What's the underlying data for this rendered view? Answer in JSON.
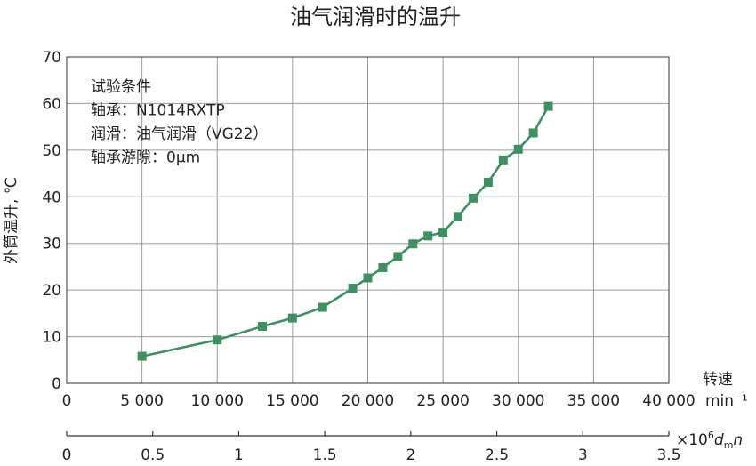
{
  "chart_data": {
    "type": "line",
    "title": "油气润滑时的温升",
    "ylabel": "外筒温升, ℃",
    "xlabel": "转速",
    "xunit": "min⁻¹",
    "x2label_prefix": "×10",
    "x2label_exp": "6",
    "x2label_var_d": "d",
    "x2label_var_sub": "m",
    "x2label_var_n": "n",
    "xlim": [
      0,
      40000
    ],
    "ylim": [
      0,
      70
    ],
    "x2lim": [
      0,
      3.5
    ],
    "grid": true,
    "xticks": [
      0,
      5000,
      10000,
      15000,
      20000,
      25000,
      30000,
      35000,
      40000
    ],
    "xtick_labels": [
      "0",
      "5 000",
      "10 000",
      "15 000",
      "20 000",
      "25 000",
      "30 000",
      "35 000",
      "40 000"
    ],
    "yticks": [
      0,
      10,
      20,
      30,
      40,
      50,
      60,
      70
    ],
    "ytick_labels": [
      "0",
      "10",
      "20",
      "30",
      "40",
      "50",
      "60",
      "70"
    ],
    "x2ticks": [
      0,
      0.5,
      1,
      1.5,
      2,
      2.5,
      3,
      3.5
    ],
    "x2tick_labels": [
      "0",
      "0.5",
      "1",
      "1.5",
      "2",
      "2.5",
      "3",
      "3.5"
    ],
    "series": [
      {
        "color": "#3d9161",
        "marker": "square",
        "x": [
          5000,
          10000,
          13000,
          15000,
          17000,
          19000,
          20000,
          21000,
          22000,
          23000,
          24000,
          25000,
          26000,
          27000,
          28000,
          29000,
          30000,
          31000,
          32000
        ],
        "y": [
          5.8,
          9.3,
          12.2,
          14.0,
          16.3,
          20.4,
          22.6,
          24.8,
          27.2,
          29.9,
          31.6,
          32.4,
          35.8,
          39.7,
          43.1,
          47.9,
          50.2,
          53.7,
          59.4
        ]
      }
    ],
    "conditions": [
      "试验条件",
      "轴承：N1014RXTP",
      "润滑：油气润滑（VG22）",
      "轴承游隙：0μm"
    ]
  }
}
